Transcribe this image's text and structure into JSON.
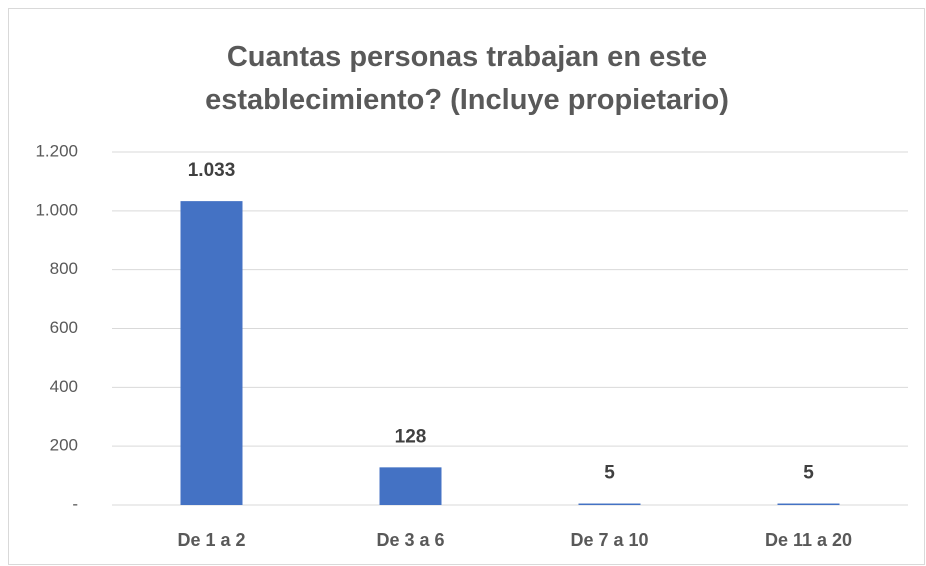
{
  "chart_data": {
    "type": "bar",
    "title": "Cuantas personas trabajan en este establecimiento? (Incluye propietario)",
    "categories": [
      "De 1 a 2",
      "De 3 a 6",
      "De 7 a 10",
      "De 11 a 20"
    ],
    "values": [
      1033,
      128,
      5,
      5
    ],
    "value_labels": [
      "1.033",
      "128",
      "5",
      "5"
    ],
    "color": "#4472c4",
    "ylim": [
      0,
      1200
    ],
    "yticks": [
      {
        "value": 0,
        "label": "-"
      },
      200,
      400,
      600,
      800,
      {
        "value": 1000,
        "label": "1.000"
      },
      {
        "value": 1200,
        "label": "1.200"
      }
    ],
    "grid": true
  }
}
